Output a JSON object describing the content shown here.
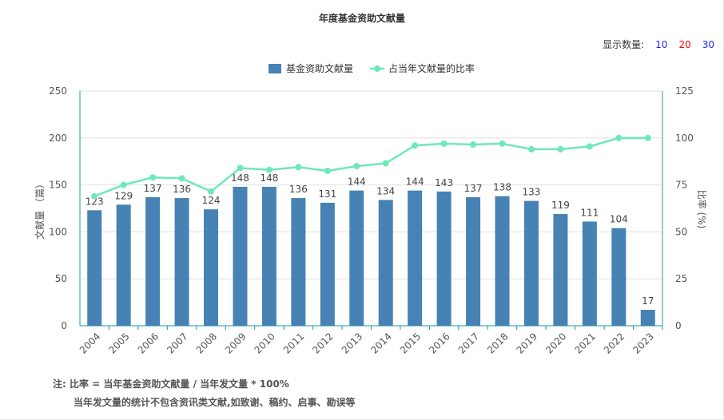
{
  "chart_data": {
    "type": "bar",
    "title": "年度基金资助文献量",
    "categories": [
      "2004",
      "2005",
      "2006",
      "2007",
      "2008",
      "2009",
      "2010",
      "2011",
      "2012",
      "2013",
      "2014",
      "2015",
      "2016",
      "2017",
      "2018",
      "2019",
      "2020",
      "2021",
      "2022",
      "2023"
    ],
    "series": [
      {
        "name": "基金资助文献量",
        "type": "bar",
        "axis": "left",
        "color": "#4682b4",
        "values": [
          123,
          129,
          137,
          136,
          124,
          148,
          148,
          136,
          131,
          144,
          134,
          144,
          143,
          137,
          138,
          133,
          119,
          111,
          104,
          17
        ]
      },
      {
        "name": "占当年文献量的比率",
        "type": "line",
        "axis": "right",
        "color": "#6fe8b8",
        "values": [
          69,
          75,
          79,
          78.5,
          71.5,
          84,
          83,
          84.5,
          82.5,
          85,
          86.5,
          96,
          97,
          96.5,
          97,
          94,
          94,
          95.5,
          100,
          100
        ]
      }
    ],
    "ylabel": "文献量 （篇）",
    "y2label": "比率 (%)",
    "ylim": [
      0,
      250
    ],
    "y2lim": [
      0,
      125
    ],
    "yticks": [
      0,
      50,
      100,
      150,
      200,
      250
    ],
    "y2ticks": [
      0,
      25,
      50,
      75,
      100,
      125
    ],
    "grid": true,
    "legend": "top-center"
  },
  "count_selector": {
    "label": "显示数量:",
    "options": [
      {
        "text": "10",
        "color": "#1f1fff"
      },
      {
        "text": "20",
        "color": "#ff0000"
      },
      {
        "text": "30",
        "color": "#1f1fff"
      }
    ]
  },
  "notes": {
    "line1": "注:   比率 = 当年基金资助文献量 / 当年发文量 * 100%",
    "line2": "当年发文量的统计不包含资讯类文献,如致谢、稿约、启事、勘误等"
  }
}
